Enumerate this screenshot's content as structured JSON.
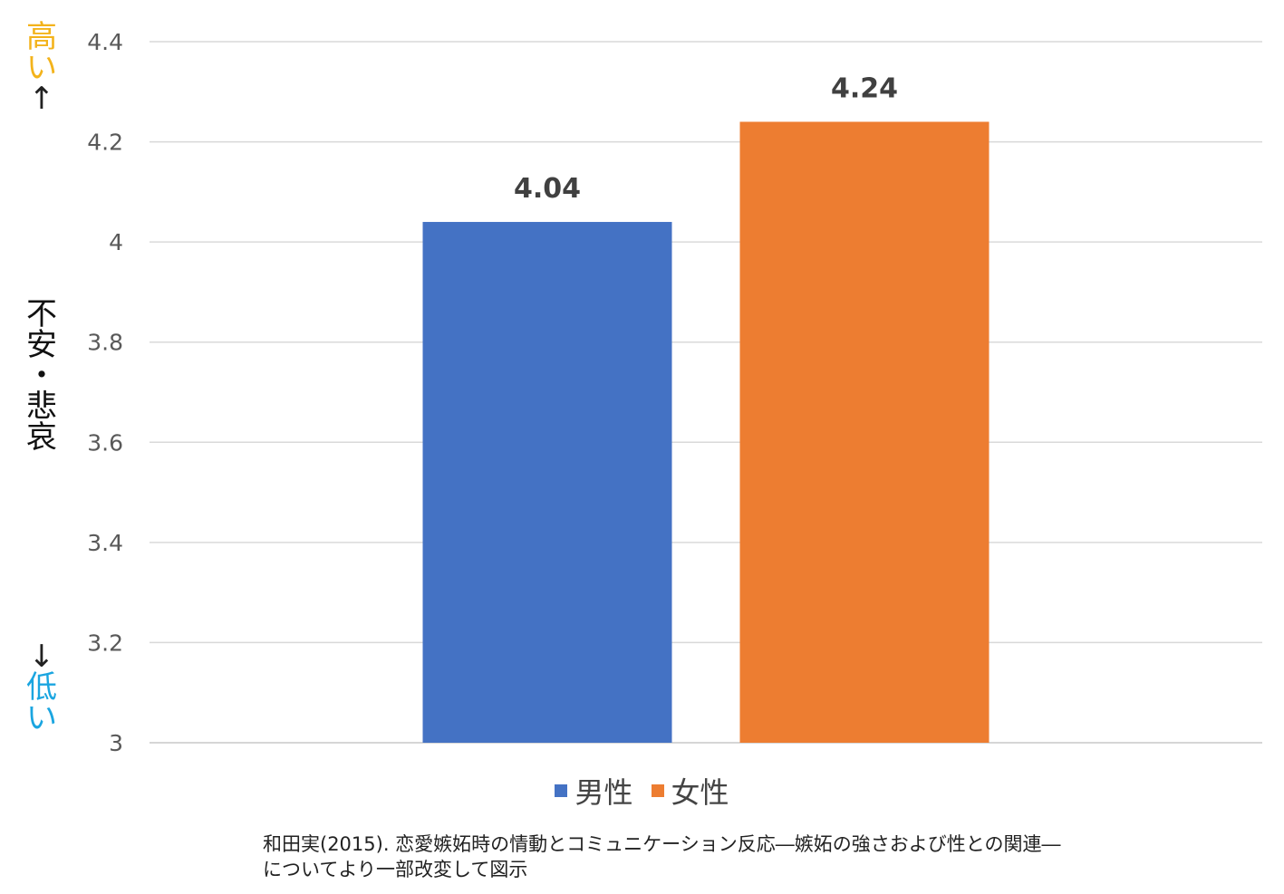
{
  "chart_data": {
    "type": "bar",
    "categories": [
      "男性",
      "女性"
    ],
    "values": [
      4.04,
      4.24
    ],
    "colors": [
      "#4472c4",
      "#ed7d31"
    ],
    "data_labels": [
      "4.04",
      "4.24"
    ],
    "ylim": [
      3,
      4.4
    ],
    "yticks": [
      "3",
      "3.2",
      "3.4",
      "3.6",
      "3.8",
      "4",
      "4.2",
      "4.4"
    ],
    "ytick_values": [
      3,
      3.2,
      3.4,
      3.6,
      3.8,
      4,
      4.2,
      4.4
    ],
    "grid": true,
    "legend_position": "bottom",
    "ylabel": {
      "high": [
        "高",
        "い"
      ],
      "high_arrow": "↑",
      "middle": [
        "不",
        "安",
        "・",
        "悲",
        "哀"
      ],
      "low_arrow": "↓",
      "low": [
        "低",
        "い"
      ],
      "high_color": "#f3b31b",
      "low_color": "#1aa5e0"
    }
  },
  "legend": [
    {
      "label": "男性",
      "color": "#4472c4"
    },
    {
      "label": "女性",
      "color": "#ed7d31"
    }
  ],
  "source": {
    "line1": "和田実(2015). 恋愛嫉妬時の情動とコミュニケーション反応―嫉妬の強さおよび性との関連―",
    "line2": "についてより一部改変して図示"
  }
}
